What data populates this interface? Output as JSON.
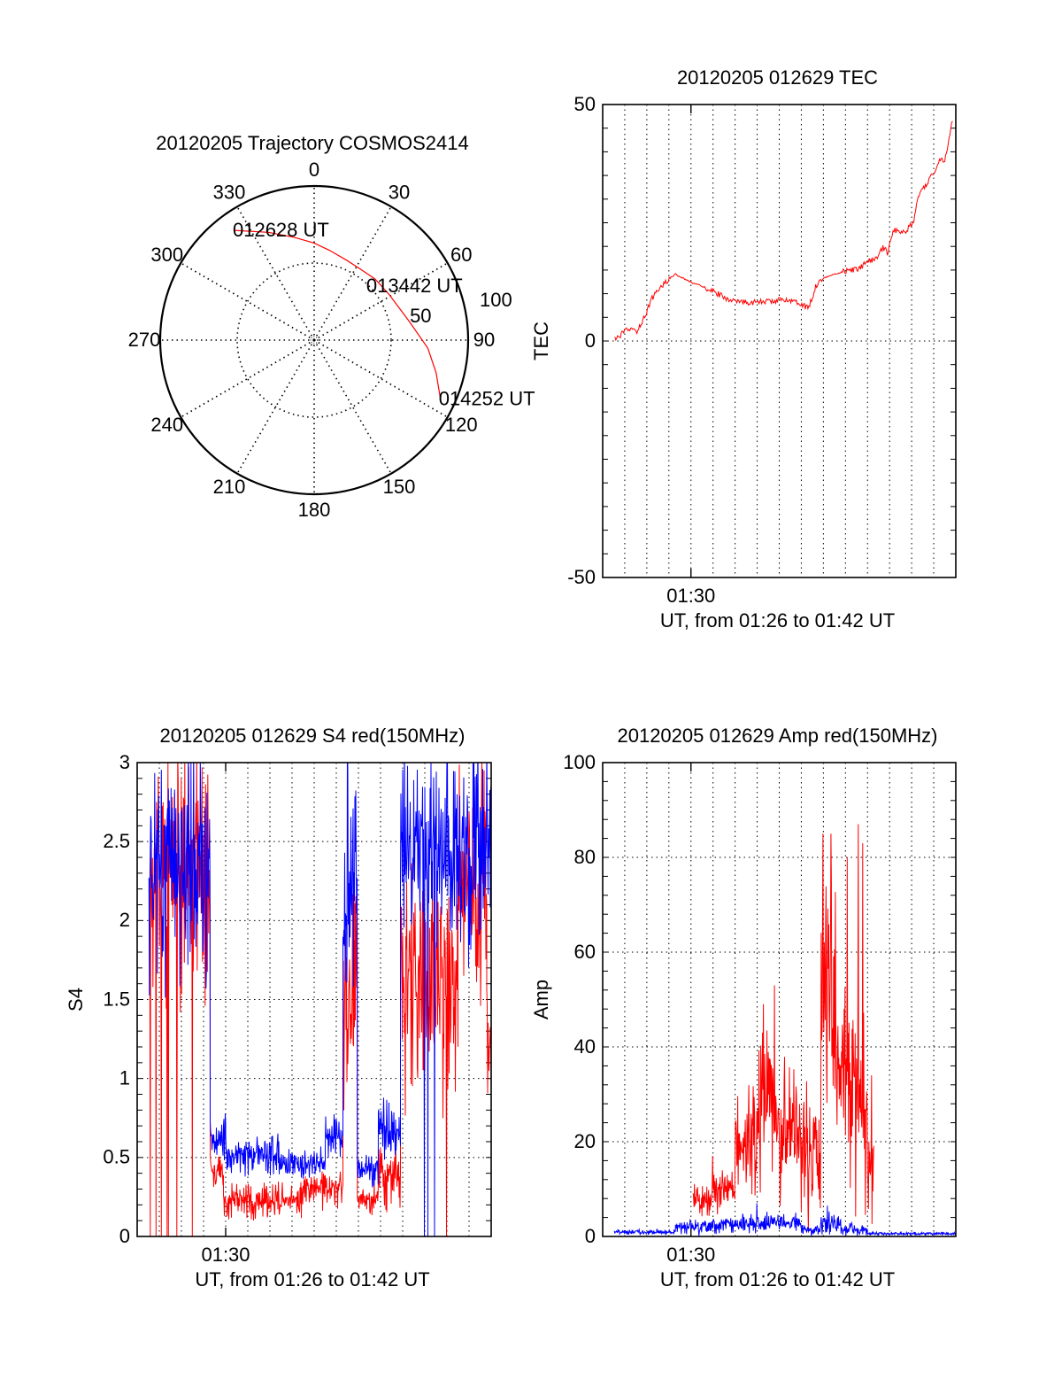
{
  "chart_data": [
    {
      "type": "polar",
      "title": "20120205 Trajectory COSMOS2414",
      "angle_labels": [
        "0",
        "30",
        "60",
        "90",
        "120",
        "150",
        "180",
        "210",
        "240",
        "270",
        "300",
        "330"
      ],
      "angles": [
        0,
        30,
        60,
        90,
        120,
        150,
        180,
        210,
        240,
        270,
        300,
        330
      ],
      "rings": [
        50,
        100
      ],
      "ring_labels": [
        "50",
        "100"
      ],
      "rlim": [
        0,
        100
      ],
      "trajectory_color": "#ff0000",
      "trajectory": [
        {
          "az": 324,
          "r": 88
        },
        {
          "az": 337,
          "r": 76
        },
        {
          "az": 349,
          "r": 68
        },
        {
          "az": 0,
          "r": 63
        },
        {
          "az": 10,
          "r": 59
        },
        {
          "az": 22,
          "r": 56
        },
        {
          "az": 33,
          "r": 55
        },
        {
          "az": 45,
          "r": 56
        },
        {
          "az": 59,
          "r": 57
        },
        {
          "az": 79,
          "r": 63
        },
        {
          "az": 94,
          "r": 74
        },
        {
          "az": 105,
          "r": 82
        },
        {
          "az": 115,
          "r": 90.5
        }
      ],
      "annotations": [
        {
          "text": "012628 UT",
          "point": 0
        },
        {
          "text": "013442 UT",
          "point": 7
        },
        {
          "text": "014252 UT",
          "point": 12
        }
      ]
    },
    {
      "type": "line",
      "title": "20120205 012629 TEC",
      "xlabel": "UT, from 01:26 to 01:42 UT",
      "ylabel": "TEC",
      "xlim": [
        0,
        16
      ],
      "x_units": "minutes after 01:26 UT",
      "xticks": [
        {
          "value": 4,
          "label": "01:30"
        }
      ],
      "ylim": [
        -50,
        50
      ],
      "yticks": [
        {
          "value": 50,
          "label": "50"
        },
        {
          "value": 0,
          "label": "0"
        },
        {
          "value": -50,
          "label": "-50"
        }
      ],
      "yminor": 5,
      "grid": true,
      "series": [
        {
          "name": "TEC",
          "color": "#ff0000",
          "x": [
            0.55,
            0.8,
            1.15,
            1.55,
            1.9,
            2.2,
            2.6,
            3.1,
            3.3,
            4.0,
            4.65,
            5.6,
            6.0,
            7.0,
            7.6,
            8.4,
            8.9,
            9.3,
            9.5,
            9.65,
            10.0,
            10.9,
            11.6,
            12.0,
            12.4,
            12.7,
            12.9,
            13.2,
            13.7,
            14.1,
            14.3,
            14.7,
            15.1,
            15.3,
            15.5,
            15.85
          ],
          "y": [
            0.3,
            1.2,
            2.5,
            2.1,
            5.1,
            8.8,
            11.3,
            13.5,
            14.1,
            12.4,
            11.3,
            9.1,
            8.2,
            8.2,
            8.4,
            8.8,
            8.2,
            6.9,
            9.1,
            11.7,
            13.3,
            14.7,
            15.2,
            16.9,
            17.2,
            19.8,
            18.7,
            23.5,
            23.1,
            25.3,
            30.5,
            33.4,
            36.4,
            38.6,
            38.2,
            46.5
          ]
        }
      ]
    },
    {
      "type": "line",
      "title": "20120205 012629 S4 red(150MHz)",
      "xlabel": "UT, from 01:26 to 01:42 UT",
      "ylabel": "S4",
      "xlim": [
        0,
        16
      ],
      "x_units": "minutes after 01:26 UT",
      "xticks": [
        {
          "value": 4,
          "label": "01:30"
        }
      ],
      "ylim": [
        0,
        3
      ],
      "yticks": [
        {
          "value": 3,
          "label": "3"
        },
        {
          "value": 2.5,
          "label": "2.5"
        },
        {
          "value": 2,
          "label": "2"
        },
        {
          "value": 1.5,
          "label": "1.5"
        },
        {
          "value": 1,
          "label": "1"
        },
        {
          "value": 0.5,
          "label": "0.5"
        },
        {
          "value": 0,
          "label": "0"
        }
      ],
      "yminor": 0.1,
      "grid": true,
      "series": [
        {
          "name": "red",
          "color": "#ff0000",
          "envelope": [
            [
              0.53,
              3.3,
              1.4,
              3.2
            ],
            [
              3.3,
              3.9,
              0.25,
              0.55
            ],
            [
              3.9,
              7.5,
              0.1,
              0.35
            ],
            [
              7.5,
              9.3,
              0.15,
              0.45
            ],
            [
              9.3,
              9.95,
              0.7,
              2.2
            ],
            [
              9.95,
              10.9,
              0.12,
              0.35
            ],
            [
              10.9,
              11.9,
              0.15,
              0.6
            ],
            [
              11.9,
              14.5,
              0.7,
              2.5
            ],
            [
              14.5,
              15.8,
              1.2,
              3.2
            ],
            [
              15.8,
              16,
              0.8,
              1.7
            ]
          ],
          "spikes": [
            [
              0.6,
              0
            ],
            [
              0.85,
              0
            ],
            [
              1.1,
              0
            ],
            [
              1.35,
              0
            ],
            [
              1.42,
              0
            ],
            [
              1.8,
              0
            ],
            [
              2.5,
              0
            ],
            [
              14.0,
              0
            ]
          ]
        },
        {
          "name": "blue",
          "color": "#0000ff",
          "envelope": [
            [
              0.53,
              3.3,
              1.4,
              3.2
            ],
            [
              3.3,
              4.0,
              0.45,
              0.8
            ],
            [
              4.0,
              6.5,
              0.35,
              0.68
            ],
            [
              6.5,
              8.5,
              0.35,
              0.58
            ],
            [
              8.5,
              9.3,
              0.45,
              0.8
            ],
            [
              9.3,
              9.95,
              1.2,
              3.2
            ],
            [
              9.95,
              10.9,
              0.3,
              0.55
            ],
            [
              10.9,
              11.9,
              0.45,
              0.9
            ],
            [
              11.9,
              16,
              1.7,
              3.2
            ]
          ],
          "spikes": [
            [
              13.0,
              0
            ],
            [
              13.15,
              0
            ],
            [
              13.45,
              0
            ]
          ]
        }
      ]
    },
    {
      "type": "line",
      "title": "20120205 012629 Amp red(150MHz)",
      "xlabel": "UT, from 01:26 to 01:42 UT",
      "ylabel": "Amp",
      "xlim": [
        0,
        16
      ],
      "x_units": "minutes after 01:26 UT",
      "xticks": [
        {
          "value": 4,
          "label": "01:30"
        }
      ],
      "ylim": [
        0,
        100
      ],
      "yticks": [
        {
          "value": 100,
          "label": "100"
        },
        {
          "value": 80,
          "label": "80"
        },
        {
          "value": 60,
          "label": "60"
        },
        {
          "value": 40,
          "label": "40"
        },
        {
          "value": 20,
          "label": "20"
        },
        {
          "value": 0,
          "label": "0"
        }
      ],
      "yminor": 4,
      "grid": true,
      "series": [
        {
          "name": "red",
          "color": "#ff0000",
          "envelope": [
            [
              4.1,
              5.0,
              3,
              12
            ],
            [
              5.0,
              6.0,
              4,
              17
            ],
            [
              6.0,
              7.0,
              8,
              33
            ],
            [
              7.0,
              8.0,
              8,
              45
            ],
            [
              8.0,
              9.0,
              5,
              38
            ],
            [
              9.0,
              9.9,
              0,
              35
            ],
            [
              9.9,
              10.6,
              18,
              85
            ],
            [
              10.6,
              11.2,
              12,
              60
            ],
            [
              11.2,
              12.0,
              3,
              55
            ],
            [
              12.0,
              12.3,
              0,
              30
            ]
          ],
          "spikes": [
            [
              5.0,
              17
            ],
            [
              7.3,
              49
            ],
            [
              7.8,
              53
            ],
            [
              10.0,
              85
            ],
            [
              10.35,
              85
            ],
            [
              11.1,
              80
            ],
            [
              11.6,
              87
            ],
            [
              11.8,
              83
            ],
            [
              12.2,
              34
            ]
          ]
        },
        {
          "name": "blue",
          "color": "#0000ff",
          "envelope": [
            [
              0.53,
              3.3,
              0.3,
              1.5
            ],
            [
              3.3,
              5.0,
              0,
              4
            ],
            [
              5.0,
              7.0,
              0.5,
              5
            ],
            [
              7.0,
              9.0,
              0.5,
              5.5
            ],
            [
              9.0,
              9.9,
              0,
              3
            ],
            [
              9.9,
              10.8,
              0,
              6
            ],
            [
              10.8,
              12.0,
              0,
              3
            ],
            [
              12.0,
              16,
              0.2,
              1
            ]
          ],
          "spikes": [
            [
              7.0,
              7
            ],
            [
              10.2,
              6.5
            ]
          ]
        }
      ]
    }
  ]
}
